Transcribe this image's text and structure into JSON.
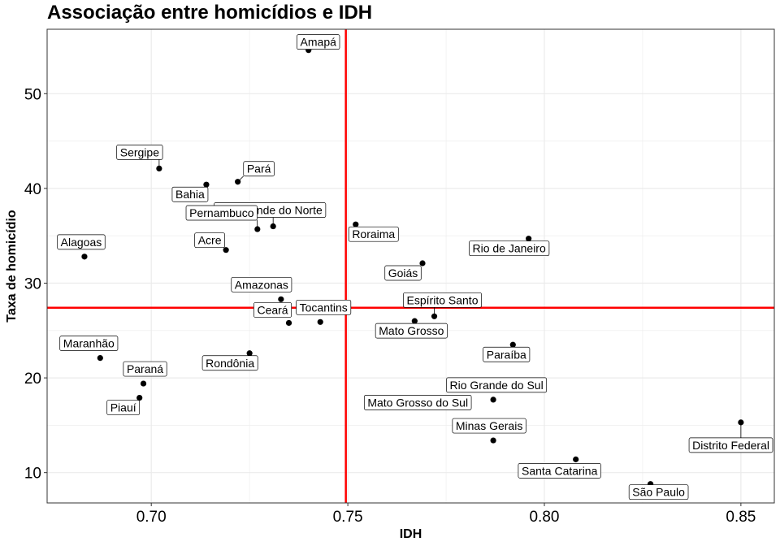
{
  "chart_data": {
    "type": "scatter",
    "title": "Associação entre homicídios e IDH",
    "xlabel": "IDH",
    "ylabel": "Taxa de homicídio",
    "xlim": [
      0.6735,
      0.8585
    ],
    "ylim": [
      6.8,
      56.8
    ],
    "x_ticks": [
      0.7,
      0.75,
      0.8,
      0.85
    ],
    "x_tick_labels": [
      "0.70",
      "0.75",
      "0.80",
      "0.85"
    ],
    "y_ticks": [
      10,
      20,
      30,
      40,
      50
    ],
    "y_tick_labels": [
      "10",
      "20",
      "30",
      "40",
      "50"
    ],
    "grid": true,
    "reference_lines": {
      "vline_x": 0.7495,
      "hline_y": 27.4,
      "color": "#ff0000"
    },
    "colors": {
      "points": "#000000",
      "reference": "#ff0000",
      "grid": "#ebebeb",
      "panel_border": "#333333"
    },
    "points": [
      {
        "label": "Amapá",
        "x": 0.74,
        "y": 54.6
      },
      {
        "label": "Sergipe",
        "x": 0.702,
        "y": 42.1
      },
      {
        "label": "Pará",
        "x": 0.722,
        "y": 40.7
      },
      {
        "label": "Bahia",
        "x": 0.714,
        "y": 40.4
      },
      {
        "label": "Rio Grande do Norte",
        "x": 0.731,
        "y": 36.0
      },
      {
        "label": "Roraima",
        "x": 0.752,
        "y": 36.2
      },
      {
        "label": "Pernambuco",
        "x": 0.727,
        "y": 35.7
      },
      {
        "label": "Rio de Janeiro",
        "x": 0.796,
        "y": 34.7
      },
      {
        "label": "Acre",
        "x": 0.719,
        "y": 33.5
      },
      {
        "label": "Alagoas",
        "x": 0.683,
        "y": 32.8
      },
      {
        "label": "Goiás",
        "x": 0.769,
        "y": 32.1
      },
      {
        "label": "Amazonas",
        "x": 0.733,
        "y": 28.3
      },
      {
        "label": "Espírito Santo",
        "x": 0.772,
        "y": 26.5
      },
      {
        "label": "Mato Grosso",
        "x": 0.767,
        "y": 26.0
      },
      {
        "label": "Tocantins",
        "x": 0.743,
        "y": 25.9
      },
      {
        "label": "Ceará",
        "x": 0.735,
        "y": 25.8
      },
      {
        "label": "Paraíba",
        "x": 0.792,
        "y": 23.5
      },
      {
        "label": "Rondônia",
        "x": 0.725,
        "y": 22.6
      },
      {
        "label": "Maranhão",
        "x": 0.687,
        "y": 22.1
      },
      {
        "label": "Paraná",
        "x": 0.698,
        "y": 19.4
      },
      {
        "label": "Piauí",
        "x": 0.697,
        "y": 17.9
      },
      {
        "label": "Rio Grande do Sul",
        "x": 0.787,
        "y": 17.7
      },
      {
        "label": "Mato Grosso do Sul",
        "x": 0.774,
        "y": 17.4
      },
      {
        "label": "Distrito Federal",
        "x": 0.85,
        "y": 15.3
      },
      {
        "label": "Minas Gerais",
        "x": 0.787,
        "y": 13.4
      },
      {
        "label": "Santa Catarina",
        "x": 0.808,
        "y": 11.4
      },
      {
        "label": "São Paulo",
        "x": 0.827,
        "y": 8.8
      }
    ]
  }
}
